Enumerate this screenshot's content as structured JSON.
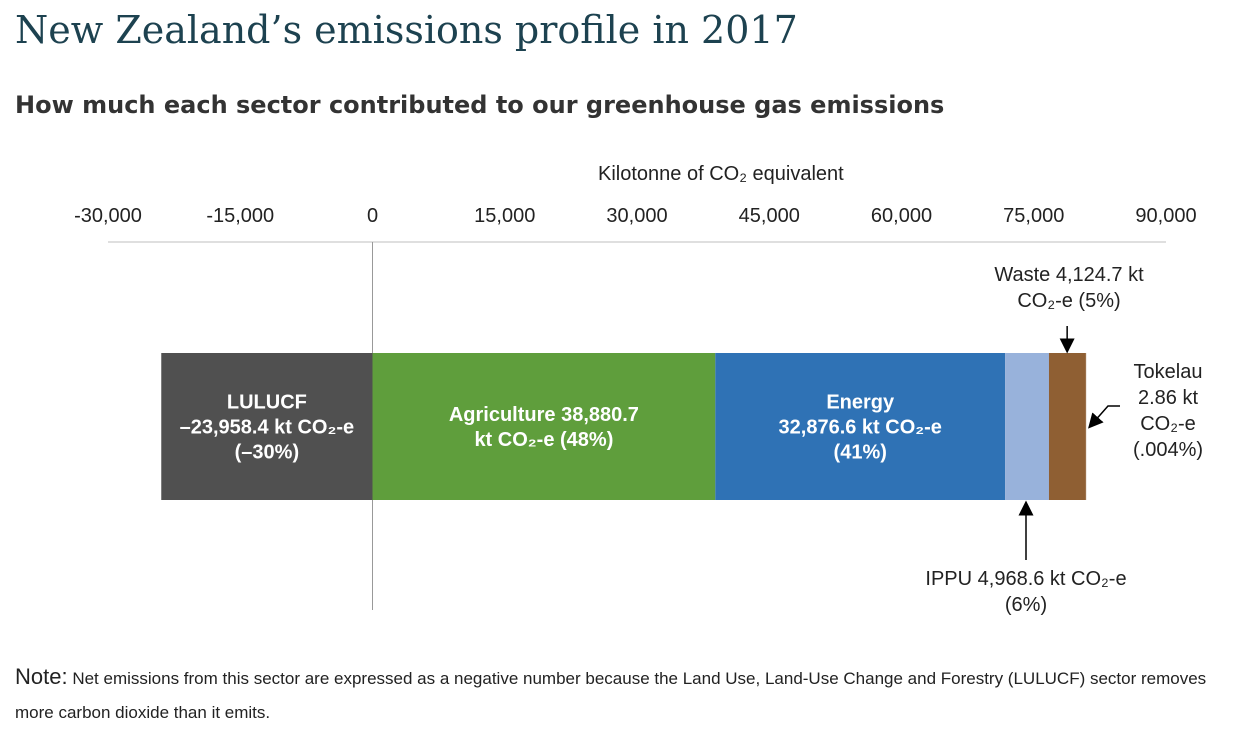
{
  "title": "New Zealand’s emissions profile in 2017",
  "subtitle": "How much each sector contributed to our greenhouse gas emissions",
  "note": {
    "label": "Note:",
    "text": " Net emissions from this sector are expressed as a negative number because the Land Use, Land-Use Change and Forestry (LULUCF) sector removes more carbon dioxide than it emits."
  },
  "chart_data": {
    "type": "bar",
    "orientation": "horizontal-stacked",
    "xlabel": "Kilotonne of CO₂ equivalent",
    "xlim": [
      -30000,
      90000
    ],
    "ticks": [
      -30000,
      -15000,
      0,
      15000,
      30000,
      45000,
      60000,
      75000,
      90000
    ],
    "tick_labels": [
      "-30,000",
      "-15,000",
      "0",
      "15,000",
      "30,000",
      "45,000",
      "60,000",
      "75,000",
      "90,000"
    ],
    "grid": false,
    "segments": [
      {
        "sector": "LULUCF",
        "value": -23958.4,
        "color": "#505050",
        "label_lines": [
          "LULUCF",
          "–23,958.4 kt CO₂-e",
          "(–30%)"
        ],
        "label_position": "inside"
      },
      {
        "sector": "Agriculture",
        "value": 38880.7,
        "color": "#5f9e3c",
        "label_lines": [
          "Agriculture 38,880.7",
          "kt CO₂-e (48%)"
        ],
        "label_position": "inside"
      },
      {
        "sector": "Energy",
        "value": 32876.6,
        "color": "#2f72b5",
        "label_lines": [
          "Energy",
          "32,876.6 kt CO₂-e",
          "(41%)"
        ],
        "label_position": "inside"
      },
      {
        "sector": "IPPU",
        "value": 4968.6,
        "color": "#98b2db",
        "label_lines": [
          "IPPU 4,968.6 kt CO₂-e",
          "(6%)"
        ],
        "label_position": "below"
      },
      {
        "sector": "Waste",
        "value": 4124.7,
        "color": "#8f5f33",
        "label_lines": [
          "Waste 4,124.7 kt",
          "CO₂-e (5%)"
        ],
        "label_position": "above"
      },
      {
        "sector": "Tokelau",
        "value": 2.86,
        "color": "#8f5f33",
        "label_lines": [
          "Tokelau",
          "2.86 kt",
          "CO₂-e",
          "(.004%)"
        ],
        "label_position": "right"
      }
    ]
  }
}
